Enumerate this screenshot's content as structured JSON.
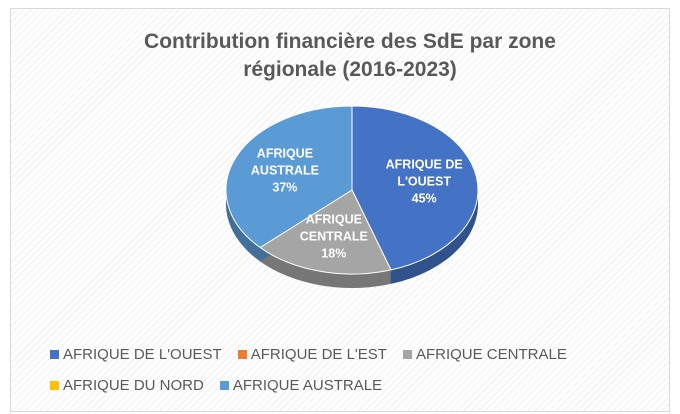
{
  "chart_data": {
    "type": "pie",
    "title": "Contribution financière des SdE par zone régionale (2016-2023)",
    "categories": [
      "AFRIQUE DE L'OUEST",
      "AFRIQUE DE L'EST",
      "AFRIQUE CENTRALE",
      "AFRIQUE DU NORD",
      "AFRIQUE AUSTRALE"
    ],
    "values": [
      45,
      0,
      18,
      0,
      37
    ],
    "value_labels": [
      "45%",
      null,
      "18%",
      null,
      "37%"
    ],
    "colors": [
      "#4472c4",
      "#ed7d31",
      "#a5a5a5",
      "#ffc000",
      "#5b9bd5"
    ],
    "legend": "bottom"
  }
}
